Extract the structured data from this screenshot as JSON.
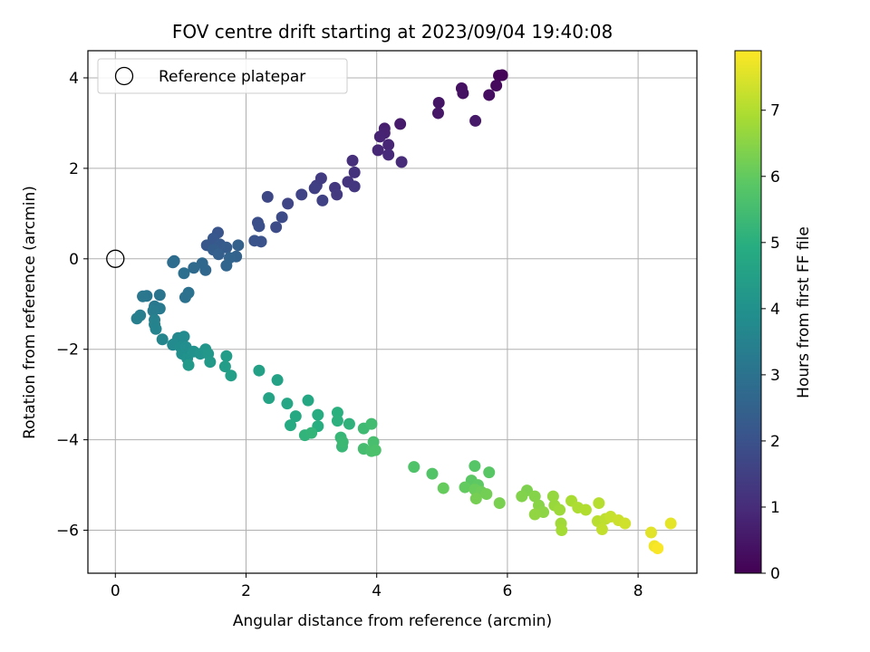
{
  "chart_data": {
    "type": "scatter",
    "title": "FOV centre drift starting at 2023/09/04 19:40:08",
    "xlabel": "Angular distance from reference (arcmin)",
    "ylabel": "Rotation from reference (arcmin)",
    "xlim": [
      -0.42,
      8.9
    ],
    "ylim": [
      -6.95,
      4.6
    ],
    "xticks": [
      0,
      2,
      4,
      6,
      8
    ],
    "yticks": [
      -6,
      -4,
      -2,
      0,
      2,
      4
    ],
    "grid": true,
    "legend": {
      "placement": "top-left",
      "entries": [
        "Reference platepar"
      ]
    },
    "reference_point": {
      "label": "Reference platepar",
      "x": 0,
      "y": 0
    },
    "colorbar": {
      "label": "Hours from first FF file",
      "colormap": "viridis",
      "range": [
        0,
        7.9
      ],
      "ticks": [
        0,
        1,
        2,
        3,
        4,
        5,
        6,
        7
      ]
    },
    "points": [
      {
        "x": 5.92,
        "y": 4.06,
        "h": 0.05
      },
      {
        "x": 5.87,
        "y": 4.05,
        "h": 0.1
      },
      {
        "x": 5.83,
        "y": 3.83,
        "h": 0.2
      },
      {
        "x": 5.72,
        "y": 3.62,
        "h": 0.3
      },
      {
        "x": 5.3,
        "y": 3.77,
        "h": 0.35
      },
      {
        "x": 5.32,
        "y": 3.66,
        "h": 0.4
      },
      {
        "x": 4.95,
        "y": 3.45,
        "h": 0.45
      },
      {
        "x": 4.94,
        "y": 3.22,
        "h": 0.5
      },
      {
        "x": 5.51,
        "y": 3.05,
        "h": 0.55
      },
      {
        "x": 4.36,
        "y": 2.98,
        "h": 0.6
      },
      {
        "x": 4.12,
        "y": 2.88,
        "h": 0.7
      },
      {
        "x": 4.12,
        "y": 2.78,
        "h": 0.75
      },
      {
        "x": 4.05,
        "y": 2.7,
        "h": 0.8
      },
      {
        "x": 4.18,
        "y": 2.52,
        "h": 0.85
      },
      {
        "x": 4.02,
        "y": 2.4,
        "h": 0.9
      },
      {
        "x": 4.18,
        "y": 2.3,
        "h": 0.95
      },
      {
        "x": 4.38,
        "y": 2.14,
        "h": 1.0
      },
      {
        "x": 3.63,
        "y": 2.17,
        "h": 1.1
      },
      {
        "x": 3.66,
        "y": 1.91,
        "h": 1.15
      },
      {
        "x": 3.56,
        "y": 1.7,
        "h": 1.2
      },
      {
        "x": 3.66,
        "y": 1.6,
        "h": 1.25
      },
      {
        "x": 3.36,
        "y": 1.57,
        "h": 1.3
      },
      {
        "x": 3.39,
        "y": 1.42,
        "h": 1.35
      },
      {
        "x": 3.15,
        "y": 1.78,
        "h": 1.4
      },
      {
        "x": 3.08,
        "y": 1.62,
        "h": 1.45
      },
      {
        "x": 3.05,
        "y": 1.56,
        "h": 1.5
      },
      {
        "x": 3.17,
        "y": 1.29,
        "h": 1.55
      },
      {
        "x": 2.85,
        "y": 1.42,
        "h": 1.6
      },
      {
        "x": 2.64,
        "y": 1.22,
        "h": 1.65
      },
      {
        "x": 2.33,
        "y": 1.37,
        "h": 1.7
      },
      {
        "x": 2.55,
        "y": 0.92,
        "h": 1.8
      },
      {
        "x": 2.46,
        "y": 0.7,
        "h": 1.85
      },
      {
        "x": 2.18,
        "y": 0.8,
        "h": 1.9
      },
      {
        "x": 2.2,
        "y": 0.72,
        "h": 1.95
      },
      {
        "x": 2.23,
        "y": 0.38,
        "h": 2.0
      },
      {
        "x": 2.13,
        "y": 0.4,
        "h": 2.05
      },
      {
        "x": 1.57,
        "y": 0.58,
        "h": 2.1
      },
      {
        "x": 1.5,
        "y": 0.45,
        "h": 2.15
      },
      {
        "x": 1.4,
        "y": 0.3,
        "h": 2.2
      },
      {
        "x": 1.6,
        "y": 0.32,
        "h": 2.25
      },
      {
        "x": 1.7,
        "y": 0.25,
        "h": 2.3
      },
      {
        "x": 1.5,
        "y": 0.2,
        "h": 2.35
      },
      {
        "x": 1.58,
        "y": 0.1,
        "h": 2.4
      },
      {
        "x": 1.88,
        "y": 0.3,
        "h": 2.45
      },
      {
        "x": 1.85,
        "y": 0.05,
        "h": 2.5
      },
      {
        "x": 1.75,
        "y": 0.02,
        "h": 2.55
      },
      {
        "x": 1.7,
        "y": -0.15,
        "h": 2.6
      },
      {
        "x": 1.38,
        "y": -0.25,
        "h": 2.65
      },
      {
        "x": 1.33,
        "y": -0.1,
        "h": 2.7
      },
      {
        "x": 1.2,
        "y": -0.2,
        "h": 2.75
      },
      {
        "x": 0.9,
        "y": -0.05,
        "h": 2.8
      },
      {
        "x": 0.88,
        "y": -0.08,
        "h": 2.85
      },
      {
        "x": 1.05,
        "y": -0.32,
        "h": 2.9
      },
      {
        "x": 1.12,
        "y": -0.75,
        "h": 2.95
      },
      {
        "x": 1.07,
        "y": -0.85,
        "h": 3.0
      },
      {
        "x": 0.68,
        "y": -0.8,
        "h": 3.05
      },
      {
        "x": 0.48,
        "y": -0.82,
        "h": 3.1
      },
      {
        "x": 0.42,
        "y": -0.83,
        "h": 3.15
      },
      {
        "x": 0.6,
        "y": -1.05,
        "h": 3.2
      },
      {
        "x": 0.68,
        "y": -1.1,
        "h": 3.25
      },
      {
        "x": 0.58,
        "y": -1.15,
        "h": 3.3
      },
      {
        "x": 0.38,
        "y": -1.25,
        "h": 3.35
      },
      {
        "x": 0.33,
        "y": -1.32,
        "h": 3.4
      },
      {
        "x": 0.6,
        "y": -1.35,
        "h": 3.45
      },
      {
        "x": 0.6,
        "y": -1.45,
        "h": 3.5
      },
      {
        "x": 0.62,
        "y": -1.55,
        "h": 3.55
      },
      {
        "x": 0.72,
        "y": -1.78,
        "h": 3.6
      },
      {
        "x": 0.88,
        "y": -1.9,
        "h": 3.65
      },
      {
        "x": 0.96,
        "y": -1.75,
        "h": 3.7
      },
      {
        "x": 1.05,
        "y": -1.72,
        "h": 3.75
      },
      {
        "x": 0.9,
        "y": -1.88,
        "h": 3.8
      },
      {
        "x": 1.0,
        "y": -1.95,
        "h": 3.85
      },
      {
        "x": 1.08,
        "y": -1.95,
        "h": 3.9
      },
      {
        "x": 1.02,
        "y": -2.1,
        "h": 3.95
      },
      {
        "x": 1.1,
        "y": -2.2,
        "h": 4.0
      },
      {
        "x": 1.2,
        "y": -2.05,
        "h": 4.05
      },
      {
        "x": 1.3,
        "y": -2.1,
        "h": 4.1
      },
      {
        "x": 1.38,
        "y": -2.0,
        "h": 4.15
      },
      {
        "x": 1.42,
        "y": -2.1,
        "h": 4.2
      },
      {
        "x": 1.45,
        "y": -2.28,
        "h": 4.25
      },
      {
        "x": 1.12,
        "y": -2.35,
        "h": 4.3
      },
      {
        "x": 1.7,
        "y": -2.15,
        "h": 4.35
      },
      {
        "x": 1.68,
        "y": -2.38,
        "h": 4.4
      },
      {
        "x": 1.77,
        "y": -2.58,
        "h": 4.45
      },
      {
        "x": 2.2,
        "y": -2.47,
        "h": 4.5
      },
      {
        "x": 2.48,
        "y": -2.68,
        "h": 4.55
      },
      {
        "x": 2.35,
        "y": -3.08,
        "h": 4.6
      },
      {
        "x": 2.63,
        "y": -3.2,
        "h": 4.7
      },
      {
        "x": 2.95,
        "y": -3.13,
        "h": 4.75
      },
      {
        "x": 2.76,
        "y": -3.48,
        "h": 4.8
      },
      {
        "x": 2.68,
        "y": -3.68,
        "h": 4.85
      },
      {
        "x": 3.1,
        "y": -3.45,
        "h": 4.9
      },
      {
        "x": 3.1,
        "y": -3.7,
        "h": 4.95
      },
      {
        "x": 3.4,
        "y": -3.4,
        "h": 5.0
      },
      {
        "x": 3.4,
        "y": -3.58,
        "h": 5.05
      },
      {
        "x": 3.58,
        "y": -3.65,
        "h": 5.1
      },
      {
        "x": 2.9,
        "y": -3.9,
        "h": 5.15
      },
      {
        "x": 3.0,
        "y": -3.85,
        "h": 5.2
      },
      {
        "x": 3.45,
        "y": -3.95,
        "h": 5.25
      },
      {
        "x": 3.47,
        "y": -4.15,
        "h": 5.3
      },
      {
        "x": 3.48,
        "y": -4.05,
        "h": 5.35
      },
      {
        "x": 3.8,
        "y": -3.75,
        "h": 5.4
      },
      {
        "x": 3.92,
        "y": -3.65,
        "h": 5.45
      },
      {
        "x": 3.8,
        "y": -4.2,
        "h": 5.5
      },
      {
        "x": 3.95,
        "y": -4.05,
        "h": 5.55
      },
      {
        "x": 3.92,
        "y": -4.25,
        "h": 5.6
      },
      {
        "x": 3.98,
        "y": -4.23,
        "h": 5.65
      },
      {
        "x": 4.57,
        "y": -4.6,
        "h": 5.7
      },
      {
        "x": 4.85,
        "y": -4.75,
        "h": 5.75
      },
      {
        "x": 5.5,
        "y": -4.58,
        "h": 5.8
      },
      {
        "x": 5.72,
        "y": -4.72,
        "h": 5.85
      },
      {
        "x": 5.45,
        "y": -4.9,
        "h": 5.9
      },
      {
        "x": 5.55,
        "y": -5.0,
        "h": 5.95
      },
      {
        "x": 5.35,
        "y": -5.05,
        "h": 6.0
      },
      {
        "x": 5.02,
        "y": -5.07,
        "h": 6.05
      },
      {
        "x": 5.5,
        "y": -5.1,
        "h": 6.1
      },
      {
        "x": 5.6,
        "y": -5.15,
        "h": 6.15
      },
      {
        "x": 5.68,
        "y": -5.2,
        "h": 6.2
      },
      {
        "x": 5.52,
        "y": -5.3,
        "h": 6.25
      },
      {
        "x": 5.88,
        "y": -5.4,
        "h": 6.3
      },
      {
        "x": 6.3,
        "y": -5.12,
        "h": 6.35
      },
      {
        "x": 6.22,
        "y": -5.25,
        "h": 6.4
      },
      {
        "x": 6.42,
        "y": -5.25,
        "h": 6.45
      },
      {
        "x": 6.48,
        "y": -5.45,
        "h": 6.5
      },
      {
        "x": 6.55,
        "y": -5.6,
        "h": 6.55
      },
      {
        "x": 6.42,
        "y": -5.65,
        "h": 6.6
      },
      {
        "x": 6.7,
        "y": -5.25,
        "h": 6.65
      },
      {
        "x": 6.72,
        "y": -5.45,
        "h": 6.7
      },
      {
        "x": 6.8,
        "y": -5.55,
        "h": 6.75
      },
      {
        "x": 6.82,
        "y": -5.85,
        "h": 6.8
      },
      {
        "x": 6.83,
        "y": -6.0,
        "h": 6.85
      },
      {
        "x": 6.98,
        "y": -5.35,
        "h": 6.9
      },
      {
        "x": 7.08,
        "y": -5.5,
        "h": 6.95
      },
      {
        "x": 7.2,
        "y": -5.55,
        "h": 7.0
      },
      {
        "x": 7.4,
        "y": -5.4,
        "h": 7.05
      },
      {
        "x": 7.38,
        "y": -5.8,
        "h": 7.1
      },
      {
        "x": 7.5,
        "y": -5.75,
        "h": 7.15
      },
      {
        "x": 7.45,
        "y": -5.98,
        "h": 7.2
      },
      {
        "x": 7.58,
        "y": -5.7,
        "h": 7.25
      },
      {
        "x": 7.7,
        "y": -5.78,
        "h": 7.3
      },
      {
        "x": 7.8,
        "y": -5.85,
        "h": 7.35
      },
      {
        "x": 8.2,
        "y": -6.05,
        "h": 7.55
      },
      {
        "x": 8.5,
        "y": -5.85,
        "h": 7.6
      },
      {
        "x": 8.25,
        "y": -6.35,
        "h": 7.75
      },
      {
        "x": 8.3,
        "y": -6.4,
        "h": 7.85
      }
    ]
  }
}
